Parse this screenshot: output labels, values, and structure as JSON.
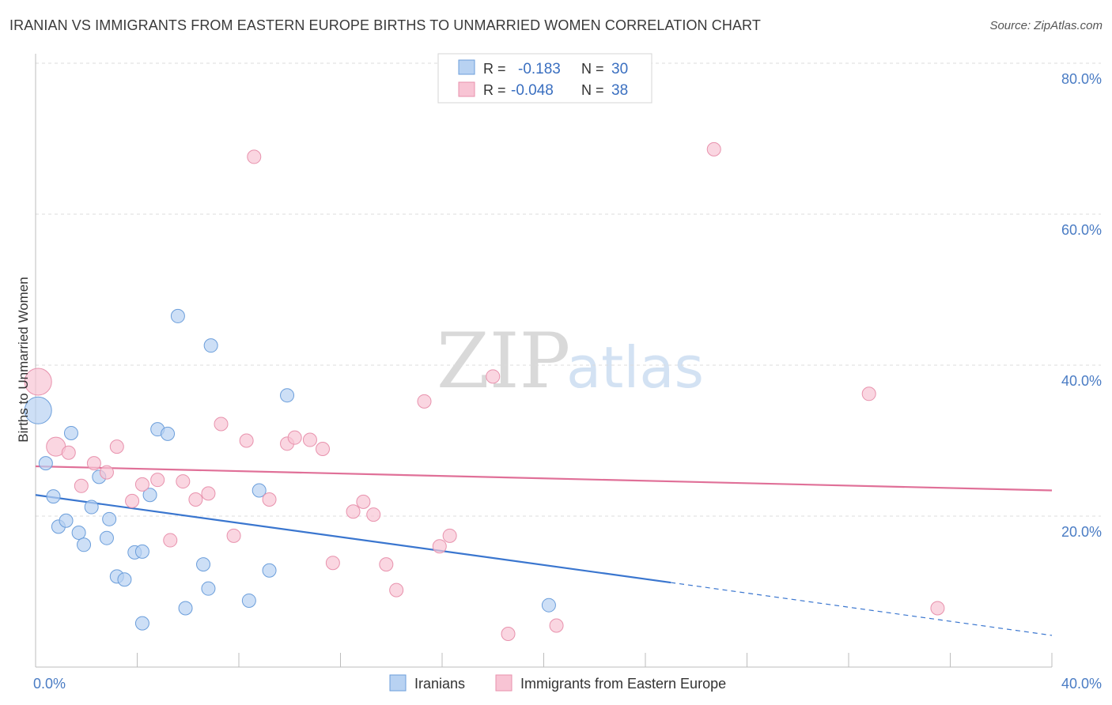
{
  "title": "IRANIAN VS IMMIGRANTS FROM EASTERN EUROPE BIRTHS TO UNMARRIED WOMEN CORRELATION CHART",
  "source": "Source: ZipAtlas.com",
  "watermark": {
    "zip": "ZIP",
    "atlas": "atlas"
  },
  "colors": {
    "blue_fill": "#b8d2f2",
    "blue_stroke": "#6b9edb",
    "blue_line": "#3a76cf",
    "pink_fill": "#f8c4d4",
    "pink_stroke": "#e892ad",
    "pink_line": "#e07098",
    "tick_text": "#4a7cc4"
  },
  "chart_data": {
    "type": "scatter",
    "xlabel": "",
    "ylabel": "Births to Unmarried Women",
    "xlim": [
      0,
      40
    ],
    "ylim": [
      0,
      80
    ],
    "x_ticks": [
      {
        "v": 0,
        "label": "0.0%"
      },
      {
        "v": 40,
        "label": "40.0%"
      }
    ],
    "y_ticks": [
      {
        "v": 20,
        "label": "20.0%"
      },
      {
        "v": 40,
        "label": "40.0%"
      },
      {
        "v": 60,
        "label": "60.0%"
      },
      {
        "v": 80,
        "label": "80.0%"
      }
    ],
    "legend_top": [
      {
        "series": "Iranians",
        "r_label": "R =",
        "r_value": "-0.183",
        "n_label": "N =",
        "n_value": "30"
      },
      {
        "series": "Immigrants from Eastern Europe",
        "r_label": "R =",
        "r_value": "-0.048",
        "n_label": "N =",
        "n_value": "38"
      }
    ],
    "series": [
      {
        "name": "Iranians",
        "color": "blue",
        "trend": {
          "x0": 0,
          "y0": 22.8,
          "x1": 25,
          "y1": 11.2,
          "dash_x1": 40,
          "dash_y1": 4.2
        },
        "points": [
          {
            "x": 0.1,
            "y": 34.0,
            "s": 3
          },
          {
            "x": 0.4,
            "y": 27.0,
            "s": 1
          },
          {
            "x": 0.7,
            "y": 22.6,
            "s": 1
          },
          {
            "x": 0.9,
            "y": 18.6,
            "s": 1
          },
          {
            "x": 1.2,
            "y": 19.4,
            "s": 1
          },
          {
            "x": 1.4,
            "y": 31.0,
            "s": 1
          },
          {
            "x": 1.7,
            "y": 17.8,
            "s": 1
          },
          {
            "x": 1.9,
            "y": 16.2,
            "s": 1
          },
          {
            "x": 2.2,
            "y": 21.2,
            "s": 1
          },
          {
            "x": 2.5,
            "y": 25.2,
            "s": 1
          },
          {
            "x": 2.8,
            "y": 17.1,
            "s": 1
          },
          {
            "x": 2.9,
            "y": 19.6,
            "s": 1
          },
          {
            "x": 3.2,
            "y": 12.0,
            "s": 1
          },
          {
            "x": 3.5,
            "y": 11.6,
            "s": 1
          },
          {
            "x": 3.9,
            "y": 15.2,
            "s": 1
          },
          {
            "x": 4.2,
            "y": 15.3,
            "s": 1
          },
          {
            "x": 4.5,
            "y": 22.8,
            "s": 1
          },
          {
            "x": 4.8,
            "y": 31.5,
            "s": 1
          },
          {
            "x": 5.2,
            "y": 30.9,
            "s": 1
          },
          {
            "x": 4.2,
            "y": 5.8,
            "s": 1
          },
          {
            "x": 5.6,
            "y": 46.5,
            "s": 1
          },
          {
            "x": 5.9,
            "y": 7.8,
            "s": 1
          },
          {
            "x": 6.6,
            "y": 13.6,
            "s": 1
          },
          {
            "x": 6.8,
            "y": 10.4,
            "s": 1
          },
          {
            "x": 6.9,
            "y": 42.6,
            "s": 1
          },
          {
            "x": 8.4,
            "y": 8.8,
            "s": 1
          },
          {
            "x": 8.8,
            "y": 23.4,
            "s": 1
          },
          {
            "x": 9.2,
            "y": 12.8,
            "s": 1
          },
          {
            "x": 9.9,
            "y": 36.0,
            "s": 1
          },
          {
            "x": 20.2,
            "y": 8.2,
            "s": 1
          }
        ]
      },
      {
        "name": "Immigrants from Eastern Europe",
        "color": "pink",
        "trend": {
          "x0": 0,
          "y0": 26.6,
          "x1": 40,
          "y1": 23.4
        },
        "points": [
          {
            "x": 0.1,
            "y": 37.8,
            "s": 3
          },
          {
            "x": 0.8,
            "y": 29.2,
            "s": 2
          },
          {
            "x": 1.3,
            "y": 28.4,
            "s": 1
          },
          {
            "x": 1.8,
            "y": 24.0,
            "s": 1
          },
          {
            "x": 2.3,
            "y": 27.0,
            "s": 1
          },
          {
            "x": 2.8,
            "y": 25.8,
            "s": 1
          },
          {
            "x": 3.2,
            "y": 29.2,
            "s": 1
          },
          {
            "x": 3.8,
            "y": 22.0,
            "s": 1
          },
          {
            "x": 4.2,
            "y": 24.2,
            "s": 1
          },
          {
            "x": 4.8,
            "y": 24.8,
            "s": 1
          },
          {
            "x": 5.3,
            "y": 16.8,
            "s": 1
          },
          {
            "x": 5.8,
            "y": 24.6,
            "s": 1
          },
          {
            "x": 6.3,
            "y": 22.2,
            "s": 1
          },
          {
            "x": 6.8,
            "y": 23.0,
            "s": 1
          },
          {
            "x": 7.3,
            "y": 32.2,
            "s": 1
          },
          {
            "x": 7.8,
            "y": 17.4,
            "s": 1
          },
          {
            "x": 8.3,
            "y": 30.0,
            "s": 1
          },
          {
            "x": 8.6,
            "y": 67.6,
            "s": 1
          },
          {
            "x": 9.2,
            "y": 22.2,
            "s": 1
          },
          {
            "x": 9.9,
            "y": 29.6,
            "s": 1
          },
          {
            "x": 10.2,
            "y": 30.4,
            "s": 1
          },
          {
            "x": 10.8,
            "y": 30.1,
            "s": 1
          },
          {
            "x": 11.3,
            "y": 28.9,
            "s": 1
          },
          {
            "x": 11.7,
            "y": 13.8,
            "s": 1
          },
          {
            "x": 12.5,
            "y": 20.6,
            "s": 1
          },
          {
            "x": 12.9,
            "y": 21.9,
            "s": 1
          },
          {
            "x": 13.3,
            "y": 20.2,
            "s": 1
          },
          {
            "x": 13.8,
            "y": 13.6,
            "s": 1
          },
          {
            "x": 14.2,
            "y": 10.2,
            "s": 1
          },
          {
            "x": 15.3,
            "y": 35.2,
            "s": 1
          },
          {
            "x": 15.9,
            "y": 16.0,
            "s": 1
          },
          {
            "x": 16.3,
            "y": 17.4,
            "s": 1
          },
          {
            "x": 18.6,
            "y": 4.4,
            "s": 1
          },
          {
            "x": 18.0,
            "y": 38.5,
            "s": 1
          },
          {
            "x": 20.5,
            "y": 5.5,
            "s": 1
          },
          {
            "x": 26.7,
            "y": 68.6,
            "s": 1
          },
          {
            "x": 32.8,
            "y": 36.2,
            "s": 1
          },
          {
            "x": 35.5,
            "y": 7.8,
            "s": 1
          }
        ]
      }
    ],
    "legend_bottom": [
      {
        "series": "Iranians",
        "label": "Iranians",
        "color": "blue"
      },
      {
        "series": "Immigrants from Eastern Europe",
        "label": "Immigrants from Eastern Europe",
        "color": "pink"
      }
    ]
  }
}
